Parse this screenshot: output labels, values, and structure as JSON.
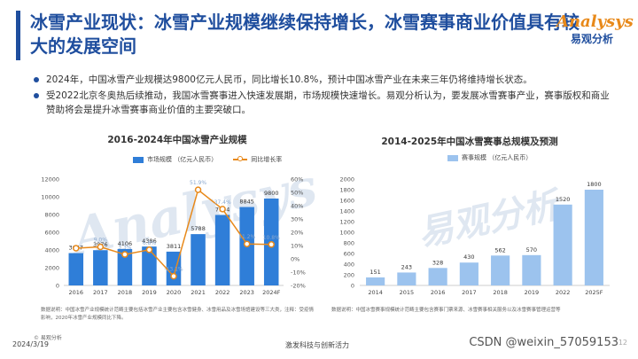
{
  "header": {
    "title": "冰雪产业现状：冰雪产业规模继续保持增长，冰雪赛事商业价值具有较大的发展空间",
    "logo_en": "Analysys",
    "logo_cn": "易观分析"
  },
  "bullets": [
    "2024年，中国冰雪产业规模达9800亿元人民币，同比增长10.8%，预计中国冰雪产业在未来三年仍将维持增长状态。",
    "受2022北京冬奥热后续推动，我国冰雪赛事进入快速发展期，市场规模快速增长。易观分析认为，要发展冰雪赛事产业，赛事版权和商业赞助将会是提升冰雪赛事商业价值的主要突破口。"
  ],
  "colors": {
    "bar": "#2f7ed8",
    "line": "#e8891a",
    "bar_light": "#9cc3ee",
    "title": "#1f4e9e"
  },
  "chart_data": [
    {
      "type": "bar",
      "title": "2016-2024年中国冰雪产业规模",
      "legend": [
        "市场规模 （亿元人民币）",
        "同比增长率"
      ],
      "categories": [
        "2016",
        "2017",
        "2018",
        "2019",
        "2020",
        "2021",
        "2022",
        "2023",
        "2024F"
      ],
      "series": [
        {
          "name": "市场规模 （亿元人民币）",
          "type": "bar",
          "axis": "left",
          "values": [
            3647,
            3976,
            4106,
            4386,
            3811,
            5788,
            7954,
            8845,
            9800
          ]
        },
        {
          "name": "同比增长率",
          "type": "line",
          "axis": "right",
          "values": [
            8.0,
            9.0,
            3.3,
            6.8,
            -13.1,
            51.9,
            37.4,
            11.2,
            10.8
          ]
        }
      ],
      "value_labels": [
        "3647",
        "3976",
        "4106",
        "4386",
        "3811",
        "5788",
        "7954",
        "8845",
        "9800"
      ],
      "rate_labels": [
        "",
        "9.0%",
        "3.3%",
        "6.8%",
        "-13.1%",
        "51.9%",
        "37.4%",
        "11.2%",
        "10.8%"
      ],
      "ylim": [
        0,
        12000
      ],
      "yticks": [
        0,
        2000,
        4000,
        6000,
        8000,
        10000,
        12000
      ],
      "y2lim": [
        -20,
        60
      ],
      "y2ticks": [
        "-20%",
        "-10%",
        "0%",
        "10%",
        "20%",
        "30%",
        "40%",
        "50%",
        "60%"
      ]
    },
    {
      "type": "bar",
      "title": "2014-2025年中国冰雪赛事总规模及预测",
      "legend": [
        "赛事规模 （亿元人民币）"
      ],
      "categories": [
        "2014",
        "2015",
        "2016",
        "2017",
        "2018",
        "2019",
        "2022",
        "2025F"
      ],
      "values": [
        151,
        243,
        328,
        430,
        562,
        570,
        1520,
        1800
      ],
      "ylim": [
        0,
        2000
      ],
      "yticks": [
        0,
        200,
        400,
        600,
        800,
        1000,
        1200,
        1400,
        1600,
        1800,
        2000
      ]
    }
  ],
  "notes": {
    "left": "数据说明：中国冰雪产业规模统计范畴主要包括冰雪产业主要包含冰雪健身、冰雪用品及冰雪场馆建设等三大类，注释：受疫情影响，2020年冰雪产业规模同比下降。",
    "right": "数据说明：中国冰雪赛事规模统计范畴主要包含赛事门票来源、冰雪赛事相关服务以及冰雪赛事管理运营等"
  },
  "footer": {
    "source": "© 易观分析",
    "date": "2024/3/19",
    "slogan": "激发科技与创新活力",
    "watermark_text": "CSDN @weixin_57059153",
    "page": "12",
    "bg_watermark_en": "Analysys",
    "bg_watermark_cn": "易观分析"
  }
}
